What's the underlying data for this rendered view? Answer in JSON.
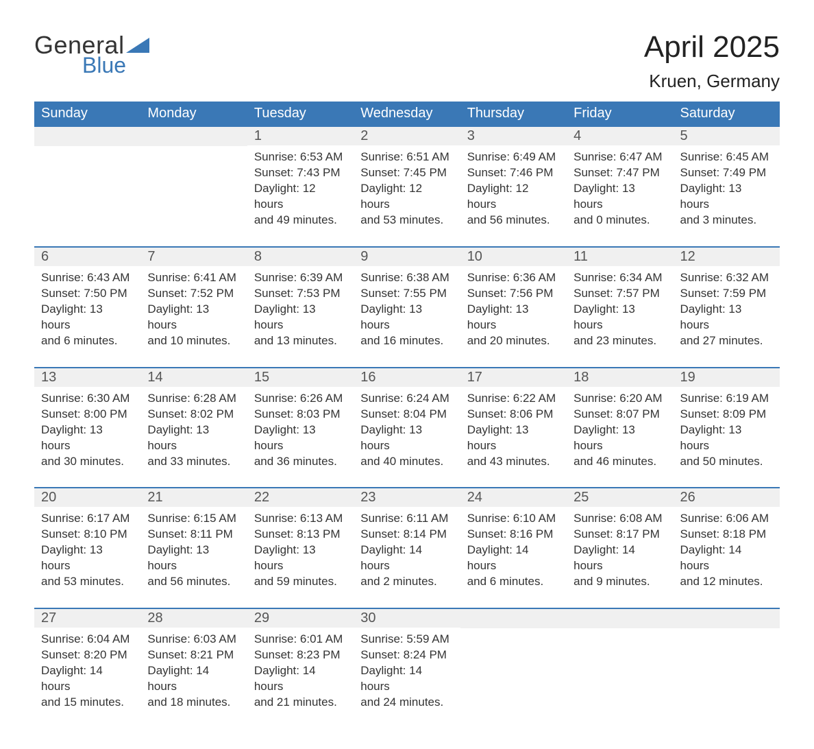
{
  "branding": {
    "word1": "General",
    "word2": "Blue",
    "shape_color": "#3a78b6",
    "word1_color": "#333333",
    "word2_color": "#3a78b6"
  },
  "title": {
    "month_year": "April 2025",
    "location": "Kruen, Germany",
    "title_fontsize": 44,
    "location_fontsize": 26,
    "text_color": "#222222"
  },
  "calendar": {
    "header_bg": "#3a78b6",
    "header_text_color": "#ffffff",
    "row_divider_color": "#3a78b6",
    "daynum_bg": "#f0f0f0",
    "daynum_color": "#555555",
    "body_text_color": "#333333",
    "background_color": "#ffffff",
    "columns": [
      "Sunday",
      "Monday",
      "Tuesday",
      "Wednesday",
      "Thursday",
      "Friday",
      "Saturday"
    ],
    "weeks": [
      [
        {
          "day": "",
          "sunrise": "",
          "sunset": "",
          "daylight_a": "",
          "daylight_b": ""
        },
        {
          "day": "",
          "sunrise": "",
          "sunset": "",
          "daylight_a": "",
          "daylight_b": ""
        },
        {
          "day": "1",
          "sunrise": "Sunrise: 6:53 AM",
          "sunset": "Sunset: 7:43 PM",
          "daylight_a": "Daylight: 12 hours",
          "daylight_b": "and 49 minutes."
        },
        {
          "day": "2",
          "sunrise": "Sunrise: 6:51 AM",
          "sunset": "Sunset: 7:45 PM",
          "daylight_a": "Daylight: 12 hours",
          "daylight_b": "and 53 minutes."
        },
        {
          "day": "3",
          "sunrise": "Sunrise: 6:49 AM",
          "sunset": "Sunset: 7:46 PM",
          "daylight_a": "Daylight: 12 hours",
          "daylight_b": "and 56 minutes."
        },
        {
          "day": "4",
          "sunrise": "Sunrise: 6:47 AM",
          "sunset": "Sunset: 7:47 PM",
          "daylight_a": "Daylight: 13 hours",
          "daylight_b": "and 0 minutes."
        },
        {
          "day": "5",
          "sunrise": "Sunrise: 6:45 AM",
          "sunset": "Sunset: 7:49 PM",
          "daylight_a": "Daylight: 13 hours",
          "daylight_b": "and 3 minutes."
        }
      ],
      [
        {
          "day": "6",
          "sunrise": "Sunrise: 6:43 AM",
          "sunset": "Sunset: 7:50 PM",
          "daylight_a": "Daylight: 13 hours",
          "daylight_b": "and 6 minutes."
        },
        {
          "day": "7",
          "sunrise": "Sunrise: 6:41 AM",
          "sunset": "Sunset: 7:52 PM",
          "daylight_a": "Daylight: 13 hours",
          "daylight_b": "and 10 minutes."
        },
        {
          "day": "8",
          "sunrise": "Sunrise: 6:39 AM",
          "sunset": "Sunset: 7:53 PM",
          "daylight_a": "Daylight: 13 hours",
          "daylight_b": "and 13 minutes."
        },
        {
          "day": "9",
          "sunrise": "Sunrise: 6:38 AM",
          "sunset": "Sunset: 7:55 PM",
          "daylight_a": "Daylight: 13 hours",
          "daylight_b": "and 16 minutes."
        },
        {
          "day": "10",
          "sunrise": "Sunrise: 6:36 AM",
          "sunset": "Sunset: 7:56 PM",
          "daylight_a": "Daylight: 13 hours",
          "daylight_b": "and 20 minutes."
        },
        {
          "day": "11",
          "sunrise": "Sunrise: 6:34 AM",
          "sunset": "Sunset: 7:57 PM",
          "daylight_a": "Daylight: 13 hours",
          "daylight_b": "and 23 minutes."
        },
        {
          "day": "12",
          "sunrise": "Sunrise: 6:32 AM",
          "sunset": "Sunset: 7:59 PM",
          "daylight_a": "Daylight: 13 hours",
          "daylight_b": "and 27 minutes."
        }
      ],
      [
        {
          "day": "13",
          "sunrise": "Sunrise: 6:30 AM",
          "sunset": "Sunset: 8:00 PM",
          "daylight_a": "Daylight: 13 hours",
          "daylight_b": "and 30 minutes."
        },
        {
          "day": "14",
          "sunrise": "Sunrise: 6:28 AM",
          "sunset": "Sunset: 8:02 PM",
          "daylight_a": "Daylight: 13 hours",
          "daylight_b": "and 33 minutes."
        },
        {
          "day": "15",
          "sunrise": "Sunrise: 6:26 AM",
          "sunset": "Sunset: 8:03 PM",
          "daylight_a": "Daylight: 13 hours",
          "daylight_b": "and 36 minutes."
        },
        {
          "day": "16",
          "sunrise": "Sunrise: 6:24 AM",
          "sunset": "Sunset: 8:04 PM",
          "daylight_a": "Daylight: 13 hours",
          "daylight_b": "and 40 minutes."
        },
        {
          "day": "17",
          "sunrise": "Sunrise: 6:22 AM",
          "sunset": "Sunset: 8:06 PM",
          "daylight_a": "Daylight: 13 hours",
          "daylight_b": "and 43 minutes."
        },
        {
          "day": "18",
          "sunrise": "Sunrise: 6:20 AM",
          "sunset": "Sunset: 8:07 PM",
          "daylight_a": "Daylight: 13 hours",
          "daylight_b": "and 46 minutes."
        },
        {
          "day": "19",
          "sunrise": "Sunrise: 6:19 AM",
          "sunset": "Sunset: 8:09 PM",
          "daylight_a": "Daylight: 13 hours",
          "daylight_b": "and 50 minutes."
        }
      ],
      [
        {
          "day": "20",
          "sunrise": "Sunrise: 6:17 AM",
          "sunset": "Sunset: 8:10 PM",
          "daylight_a": "Daylight: 13 hours",
          "daylight_b": "and 53 minutes."
        },
        {
          "day": "21",
          "sunrise": "Sunrise: 6:15 AM",
          "sunset": "Sunset: 8:11 PM",
          "daylight_a": "Daylight: 13 hours",
          "daylight_b": "and 56 minutes."
        },
        {
          "day": "22",
          "sunrise": "Sunrise: 6:13 AM",
          "sunset": "Sunset: 8:13 PM",
          "daylight_a": "Daylight: 13 hours",
          "daylight_b": "and 59 minutes."
        },
        {
          "day": "23",
          "sunrise": "Sunrise: 6:11 AM",
          "sunset": "Sunset: 8:14 PM",
          "daylight_a": "Daylight: 14 hours",
          "daylight_b": "and 2 minutes."
        },
        {
          "day": "24",
          "sunrise": "Sunrise: 6:10 AM",
          "sunset": "Sunset: 8:16 PM",
          "daylight_a": "Daylight: 14 hours",
          "daylight_b": "and 6 minutes."
        },
        {
          "day": "25",
          "sunrise": "Sunrise: 6:08 AM",
          "sunset": "Sunset: 8:17 PM",
          "daylight_a": "Daylight: 14 hours",
          "daylight_b": "and 9 minutes."
        },
        {
          "day": "26",
          "sunrise": "Sunrise: 6:06 AM",
          "sunset": "Sunset: 8:18 PM",
          "daylight_a": "Daylight: 14 hours",
          "daylight_b": "and 12 minutes."
        }
      ],
      [
        {
          "day": "27",
          "sunrise": "Sunrise: 6:04 AM",
          "sunset": "Sunset: 8:20 PM",
          "daylight_a": "Daylight: 14 hours",
          "daylight_b": "and 15 minutes."
        },
        {
          "day": "28",
          "sunrise": "Sunrise: 6:03 AM",
          "sunset": "Sunset: 8:21 PM",
          "daylight_a": "Daylight: 14 hours",
          "daylight_b": "and 18 minutes."
        },
        {
          "day": "29",
          "sunrise": "Sunrise: 6:01 AM",
          "sunset": "Sunset: 8:23 PM",
          "daylight_a": "Daylight: 14 hours",
          "daylight_b": "and 21 minutes."
        },
        {
          "day": "30",
          "sunrise": "Sunrise: 5:59 AM",
          "sunset": "Sunset: 8:24 PM",
          "daylight_a": "Daylight: 14 hours",
          "daylight_b": "and 24 minutes."
        },
        {
          "day": "",
          "sunrise": "",
          "sunset": "",
          "daylight_a": "",
          "daylight_b": ""
        },
        {
          "day": "",
          "sunrise": "",
          "sunset": "",
          "daylight_a": "",
          "daylight_b": ""
        },
        {
          "day": "",
          "sunrise": "",
          "sunset": "",
          "daylight_a": "",
          "daylight_b": ""
        }
      ]
    ]
  }
}
